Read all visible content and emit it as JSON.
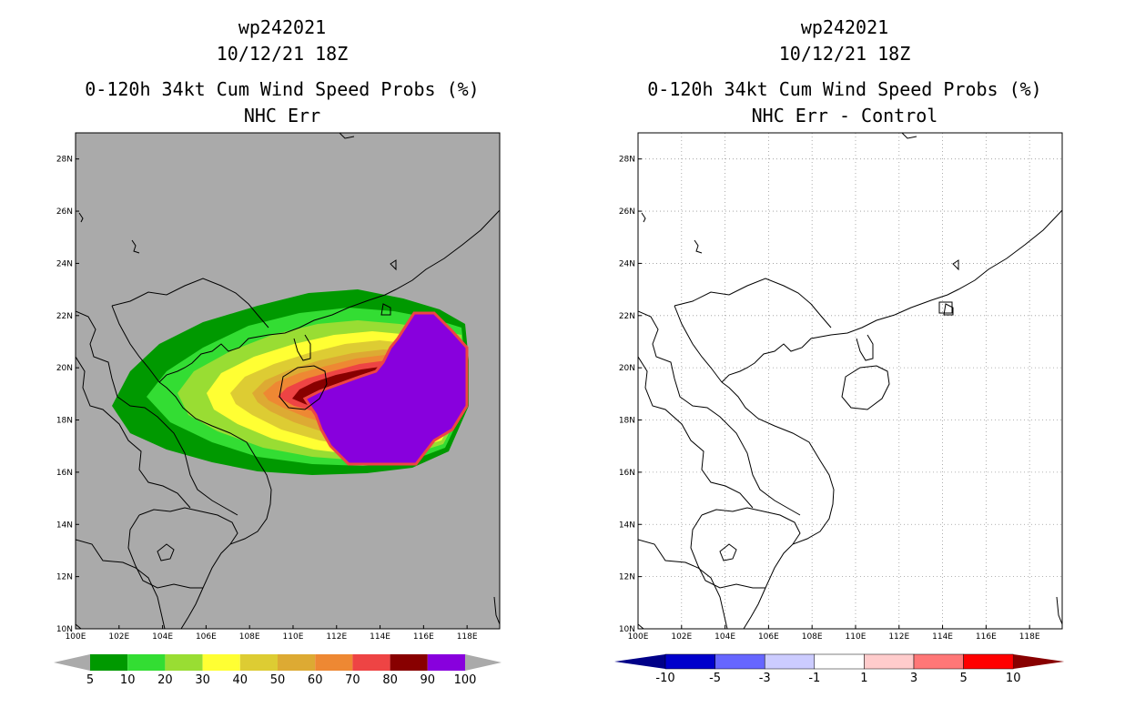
{
  "left_panel": {
    "id_line": "wp242021",
    "time_line": "10/12/21 18Z",
    "title_line": "0-120h 34kt Cum Wind Speed Probs (%)",
    "subtitle": "NHC Err",
    "colorbar_labels": [
      "5",
      "10",
      "20",
      "30",
      "40",
      "50",
      "60",
      "70",
      "80",
      "90",
      "100"
    ],
    "colorbar_colors": [
      "#009900",
      "#33dd33",
      "#99dd33",
      "#ffff33",
      "#ddcc33",
      "#ddaa33",
      "#ee8833",
      "#ee4444",
      "#880000",
      "#8800dd"
    ],
    "land_color": "#aaaaaa",
    "probability_levels": [
      5,
      10,
      20,
      30,
      40,
      50,
      60,
      70,
      80,
      90,
      100
    ]
  },
  "right_panel": {
    "id_line": "wp242021",
    "time_line": "10/12/21 18Z",
    "title_line": "0-120h 34kt Cum Wind Speed Probs (%)",
    "subtitle": "NHC Err - Control",
    "colorbar_labels": [
      "-10",
      "-5",
      "-3",
      "-1",
      "1",
      "3",
      "5",
      "10"
    ],
    "colorbar_colors": [
      "#0000cc",
      "#6666ff",
      "#ccccff",
      "#ffffff",
      "#ffcccc",
      "#ff7777",
      "#ff0000"
    ],
    "end_low_color": "#000088",
    "end_high_color": "#880000"
  },
  "axes": {
    "x_ticks": [
      "100E",
      "102E",
      "104E",
      "106E",
      "108E",
      "110E",
      "112E",
      "114E",
      "116E",
      "118E"
    ],
    "y_ticks": [
      "10N",
      "12N",
      "14N",
      "16N",
      "18N",
      "20N",
      "22N",
      "24N",
      "26N",
      "28N"
    ],
    "lon_range": [
      100,
      119.5
    ],
    "lat_range": [
      10,
      29
    ]
  }
}
